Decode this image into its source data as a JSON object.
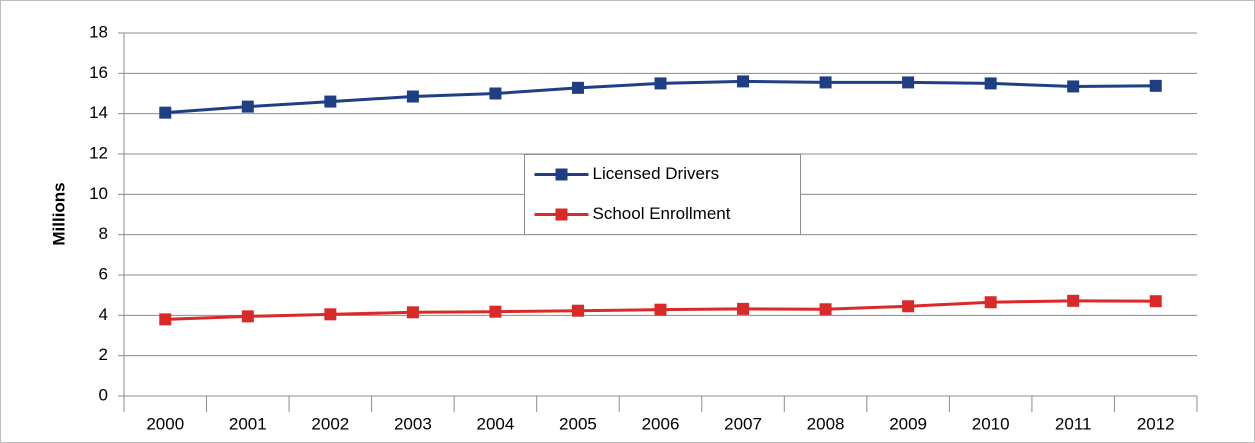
{
  "chart_data": {
    "type": "line",
    "y_label": "Millions",
    "categories": [
      "2000",
      "2001",
      "2002",
      "2003",
      "2004",
      "2005",
      "2006",
      "2007",
      "2008",
      "2009",
      "2010",
      "2011",
      "2012"
    ],
    "series": [
      {
        "name": "Licensed Drivers",
        "color": "#1f3f85",
        "values": [
          14.05,
          14.35,
          14.6,
          14.85,
          15.0,
          15.28,
          15.5,
          15.6,
          15.55,
          15.55,
          15.5,
          15.35,
          15.38
        ]
      },
      {
        "name": "School Enrollment",
        "color": "#d92a2a",
        "values": [
          3.8,
          3.95,
          4.05,
          4.15,
          4.18,
          4.23,
          4.28,
          4.32,
          4.3,
          4.45,
          4.65,
          4.72,
          4.7
        ]
      }
    ],
    "ylim": [
      0,
      18
    ],
    "yticks": [
      0,
      2,
      4,
      6,
      8,
      10,
      12,
      14,
      16,
      18
    ],
    "grid": true,
    "legend_position": "center"
  }
}
